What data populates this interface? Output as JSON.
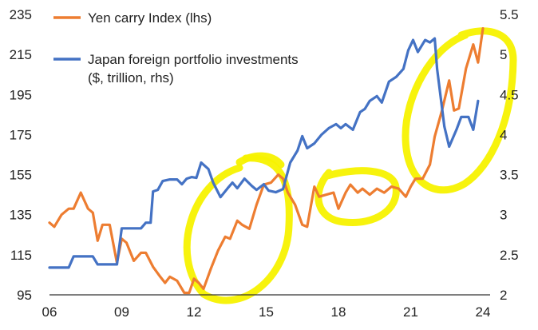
{
  "chart_data": {
    "type": "line",
    "title": "",
    "legend_position": "top-left",
    "x_ticks": [
      "06",
      "09",
      "12",
      "15",
      "18",
      "21",
      "24"
    ],
    "y_left_ticks": [
      "235",
      "215",
      "195",
      "175",
      "155",
      "135",
      "115",
      "95"
    ],
    "y_right_ticks": [
      "5.5",
      "5",
      "4.5",
      "4",
      "3.5",
      "3",
      "2.5",
      "2"
    ],
    "xlim": [
      2006,
      2024.3
    ],
    "ylim_left": [
      95,
      235
    ],
    "ylim_right": [
      2,
      5.5
    ],
    "series": [
      {
        "name": "Yen carry Index (lhs)",
        "axis": "left",
        "color": "#ED7D31",
        "points": [
          [
            2006.0,
            131
          ],
          [
            2006.2,
            129
          ],
          [
            2006.5,
            135
          ],
          [
            2006.8,
            138
          ],
          [
            2007.0,
            138
          ],
          [
            2007.3,
            146
          ],
          [
            2007.6,
            138
          ],
          [
            2007.8,
            136
          ],
          [
            2008.0,
            122
          ],
          [
            2008.2,
            130
          ],
          [
            2008.5,
            130
          ],
          [
            2008.8,
            111
          ],
          [
            2009.0,
            123
          ],
          [
            2009.2,
            121
          ],
          [
            2009.5,
            112
          ],
          [
            2009.8,
            116
          ],
          [
            2010.0,
            116
          ],
          [
            2010.3,
            109
          ],
          [
            2010.6,
            104
          ],
          [
            2010.8,
            101
          ],
          [
            2011.0,
            104
          ],
          [
            2011.3,
            102
          ],
          [
            2011.6,
            96
          ],
          [
            2011.8,
            96
          ],
          [
            2012.0,
            103
          ],
          [
            2012.2,
            101
          ],
          [
            2012.4,
            98
          ],
          [
            2012.7,
            108
          ],
          [
            2013.0,
            117
          ],
          [
            2013.3,
            124
          ],
          [
            2013.5,
            123
          ],
          [
            2013.8,
            132
          ],
          [
            2014.0,
            130
          ],
          [
            2014.3,
            128
          ],
          [
            2014.6,
            140
          ],
          [
            2014.9,
            150
          ],
          [
            2015.2,
            151
          ],
          [
            2015.5,
            155
          ],
          [
            2015.7,
            153
          ],
          [
            2015.9,
            146
          ],
          [
            2016.2,
            140
          ],
          [
            2016.5,
            130
          ],
          [
            2016.7,
            129
          ],
          [
            2017.0,
            149
          ],
          [
            2017.2,
            144
          ],
          [
            2017.5,
            145
          ],
          [
            2017.8,
            146
          ],
          [
            2018.0,
            138
          ],
          [
            2018.3,
            146
          ],
          [
            2018.5,
            150
          ],
          [
            2018.8,
            146
          ],
          [
            2019.0,
            148
          ],
          [
            2019.3,
            145
          ],
          [
            2019.6,
            148
          ],
          [
            2019.9,
            146
          ],
          [
            2020.2,
            149
          ],
          [
            2020.5,
            148
          ],
          [
            2020.8,
            144
          ],
          [
            2021.0,
            149
          ],
          [
            2021.2,
            153
          ],
          [
            2021.5,
            153
          ],
          [
            2021.8,
            160
          ],
          [
            2022.0,
            174
          ],
          [
            2022.3,
            187
          ],
          [
            2022.6,
            202
          ],
          [
            2022.8,
            187
          ],
          [
            2023.0,
            188
          ],
          [
            2023.3,
            208
          ],
          [
            2023.6,
            220
          ],
          [
            2023.8,
            211
          ],
          [
            2024.0,
            228
          ]
        ]
      },
      {
        "name": "Japan foreign portfolio investments ($, trillion, rhs)",
        "axis": "right",
        "color": "#4472C4",
        "points": [
          [
            2006.0,
            2.34
          ],
          [
            2006.5,
            2.34
          ],
          [
            2006.8,
            2.34
          ],
          [
            2007.0,
            2.48
          ],
          [
            2007.5,
            2.48
          ],
          [
            2007.8,
            2.48
          ],
          [
            2008.0,
            2.38
          ],
          [
            2008.5,
            2.38
          ],
          [
            2008.8,
            2.38
          ],
          [
            2009.0,
            2.83
          ],
          [
            2009.4,
            2.83
          ],
          [
            2009.8,
            2.83
          ],
          [
            2010.0,
            2.9
          ],
          [
            2010.2,
            2.9
          ],
          [
            2010.3,
            3.29
          ],
          [
            2010.5,
            3.31
          ],
          [
            2010.7,
            3.42
          ],
          [
            2011.0,
            3.44
          ],
          [
            2011.3,
            3.44
          ],
          [
            2011.5,
            3.38
          ],
          [
            2011.7,
            3.45
          ],
          [
            2011.9,
            3.47
          ],
          [
            2012.1,
            3.46
          ],
          [
            2012.3,
            3.65
          ],
          [
            2012.6,
            3.57
          ],
          [
            2012.8,
            3.4
          ],
          [
            2013.1,
            3.22
          ],
          [
            2013.4,
            3.33
          ],
          [
            2013.6,
            3.4
          ],
          [
            2013.8,
            3.33
          ],
          [
            2014.1,
            3.45
          ],
          [
            2014.4,
            3.36
          ],
          [
            2014.6,
            3.31
          ],
          [
            2014.9,
            3.38
          ],
          [
            2015.1,
            3.3
          ],
          [
            2015.4,
            3.28
          ],
          [
            2015.7,
            3.32
          ],
          [
            2016.0,
            3.65
          ],
          [
            2016.3,
            3.8
          ],
          [
            2016.5,
            3.98
          ],
          [
            2016.7,
            3.83
          ],
          [
            2017.0,
            3.89
          ],
          [
            2017.3,
            4.0
          ],
          [
            2017.6,
            4.08
          ],
          [
            2017.9,
            4.13
          ],
          [
            2018.1,
            4.08
          ],
          [
            2018.3,
            4.13
          ],
          [
            2018.6,
            4.06
          ],
          [
            2018.9,
            4.28
          ],
          [
            2019.1,
            4.32
          ],
          [
            2019.3,
            4.42
          ],
          [
            2019.6,
            4.48
          ],
          [
            2019.8,
            4.4
          ],
          [
            2020.1,
            4.66
          ],
          [
            2020.4,
            4.72
          ],
          [
            2020.7,
            4.82
          ],
          [
            2020.9,
            5.05
          ],
          [
            2021.1,
            5.18
          ],
          [
            2021.3,
            5.03
          ],
          [
            2021.6,
            5.18
          ],
          [
            2021.8,
            5.15
          ],
          [
            2022.0,
            5.2
          ],
          [
            2022.1,
            4.82
          ],
          [
            2022.4,
            4.1
          ],
          [
            2022.6,
            3.85
          ],
          [
            2022.9,
            4.06
          ],
          [
            2023.1,
            4.22
          ],
          [
            2023.4,
            4.22
          ],
          [
            2023.6,
            4.06
          ],
          [
            2023.8,
            4.42
          ]
        ]
      }
    ],
    "annotations": "yellow freehand circles highlighting four regions of the chart"
  }
}
